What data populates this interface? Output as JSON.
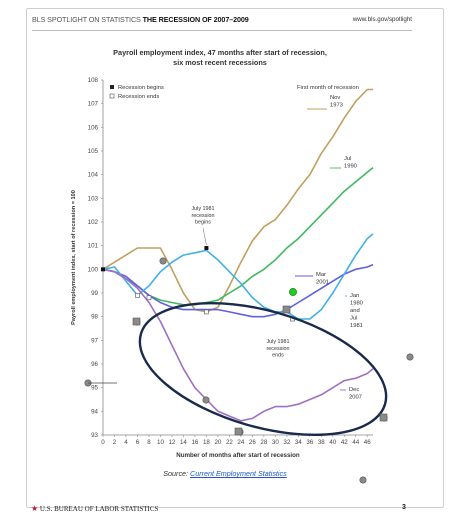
{
  "header": {
    "left_prefix": "BLS SPOTLIGHT ON STATISTICS",
    "left_title": "THE RECESSION OF 2007–2009",
    "right": "www.bls.gov/spotlight"
  },
  "footer": {
    "agency": "U.S. BUREAU OF LABOR STATISTICS",
    "page_number": "3"
  },
  "source": {
    "prefix": "Source:",
    "link_text": "Current Employment Statistics"
  },
  "colors": {
    "nov1973": "#c0a060",
    "jul1990": "#40b860",
    "mar2001": "#6060e0",
    "jan1980": "#40b0e8",
    "dec2007": "#a070c0",
    "ellipse": "#1a2a4a",
    "marker": "#8a8a8a",
    "green_marker": "#22cc22"
  },
  "chart_data": {
    "type": "line",
    "title": "Payroll employment index, 47 months after start of recession,",
    "subtitle": "six most recent recessions",
    "xlabel": "Number of months after start of recession",
    "ylabel": "Payroll employment index, start of recession = 100",
    "xlim": [
      0,
      47
    ],
    "ylim": [
      93,
      108
    ],
    "x_ticks": [
      0,
      2,
      4,
      6,
      8,
      10,
      12,
      14,
      16,
      18,
      20,
      22,
      24,
      26,
      28,
      30,
      32,
      34,
      36,
      38,
      40,
      42,
      44,
      46
    ],
    "y_ticks": [
      93,
      94,
      95,
      96,
      97,
      98,
      99,
      100,
      101,
      102,
      103,
      104,
      105,
      106,
      107,
      108
    ],
    "legend": [
      {
        "symbol": "filled-square",
        "label": "Recession begins"
      },
      {
        "symbol": "open-square",
        "label": "Recession ends"
      }
    ],
    "legend_title": "First month of recession",
    "series": [
      {
        "key": "nov1973",
        "name": "Nov 1973",
        "x": [
          0,
          2,
          4,
          6,
          8,
          10,
          12,
          14,
          16,
          18,
          20,
          22,
          24,
          26,
          28,
          30,
          32,
          34,
          36,
          38,
          40,
          42,
          44,
          46,
          47
        ],
        "y": [
          100,
          100.3,
          100.6,
          100.9,
          100.9,
          100.9,
          100.0,
          99.0,
          98.3,
          98.2,
          98.4,
          99.3,
          100.3,
          101.2,
          101.8,
          102.1,
          102.7,
          103.4,
          104.0,
          104.9,
          105.6,
          106.4,
          107.1,
          107.6,
          107.6
        ]
      },
      {
        "key": "jul1990",
        "name": "Jul 1990",
        "x": [
          0,
          2,
          4,
          6,
          8,
          10,
          12,
          14,
          16,
          18,
          20,
          22,
          24,
          26,
          28,
          30,
          32,
          34,
          36,
          38,
          40,
          42,
          44,
          46,
          47
        ],
        "y": [
          100,
          99.9,
          99.6,
          99.3,
          98.9,
          98.7,
          98.6,
          98.5,
          98.5,
          98.6,
          98.7,
          99.0,
          99.3,
          99.7,
          100.0,
          100.4,
          100.9,
          101.3,
          101.8,
          102.3,
          102.8,
          103.3,
          103.7,
          104.1,
          104.3
        ]
      },
      {
        "key": "mar2001",
        "name": "Mar 2001",
        "x": [
          0,
          2,
          4,
          6,
          8,
          10,
          12,
          14,
          16,
          18,
          20,
          22,
          24,
          26,
          28,
          30,
          32,
          34,
          36,
          38,
          40,
          42,
          44,
          46,
          47
        ],
        "y": [
          100,
          99.9,
          99.7,
          99.3,
          98.9,
          98.6,
          98.4,
          98.3,
          98.3,
          98.3,
          98.3,
          98.2,
          98.1,
          98.0,
          98.0,
          98.1,
          98.3,
          98.6,
          98.9,
          99.2,
          99.5,
          99.8,
          100.0,
          100.1,
          100.2
        ]
      },
      {
        "key": "jan1980",
        "name": "Jan 1980 and Jul 1981",
        "x": [
          0,
          2,
          4,
          6,
          8,
          10,
          12,
          14,
          16,
          18,
          20,
          22,
          24,
          26,
          28,
          30,
          32,
          34,
          36,
          38,
          40,
          42,
          44,
          46,
          47
        ],
        "y": [
          100,
          100.1,
          99.5,
          98.9,
          99.3,
          99.9,
          100.3,
          100.6,
          100.7,
          100.8,
          100.4,
          99.9,
          99.4,
          98.8,
          98.4,
          98.2,
          98.2,
          97.9,
          97.9,
          98.3,
          99.0,
          99.8,
          100.6,
          101.3,
          101.5
        ]
      },
      {
        "key": "dec2007",
        "name": "Dec 2007",
        "x": [
          0,
          2,
          4,
          6,
          8,
          10,
          12,
          14,
          16,
          18,
          20,
          22,
          24,
          26,
          28,
          30,
          32,
          34,
          36,
          38,
          40,
          42,
          44,
          46,
          47
        ],
        "y": [
          100,
          99.9,
          99.6,
          99.2,
          98.6,
          97.8,
          96.8,
          95.8,
          95.0,
          94.5,
          94.0,
          93.8,
          93.6,
          93.7,
          94.0,
          94.2,
          94.2,
          94.3,
          94.5,
          94.7,
          95.0,
          95.3,
          95.4,
          95.6,
          95.8
        ]
      }
    ],
    "annotations": [
      {
        "text_lines": [
          "July 1981",
          "recession",
          "begins"
        ],
        "x": 18,
        "y": 102.3
      },
      {
        "text_lines": [
          "July 1981",
          "recession",
          "ends"
        ],
        "x": 33,
        "y": 96.6
      }
    ],
    "series_labels": [
      {
        "key": "nov1973",
        "lines": [
          "Nov",
          "1973"
        ]
      },
      {
        "key": "jul1990",
        "lines": [
          "Jul",
          "1990"
        ]
      },
      {
        "key": "mar2001",
        "lines": [
          "Mar",
          "2001"
        ]
      },
      {
        "key": "jan1980",
        "lines": [
          "Jan",
          "1980",
          "and",
          "Jul",
          "1981"
        ]
      },
      {
        "key": "dec2007",
        "lines": [
          "Dec",
          "2007"
        ]
      }
    ],
    "begin_markers": [
      {
        "x": 0,
        "y": 100
      },
      {
        "x": 18,
        "y": 100.9
      }
    ],
    "end_markers": [
      {
        "x": 6,
        "y": 98.9
      },
      {
        "x": 8,
        "y": 98.8
      },
      {
        "x": 18,
        "y": 98.2
      },
      {
        "x": 33,
        "y": 97.9
      }
    ]
  }
}
